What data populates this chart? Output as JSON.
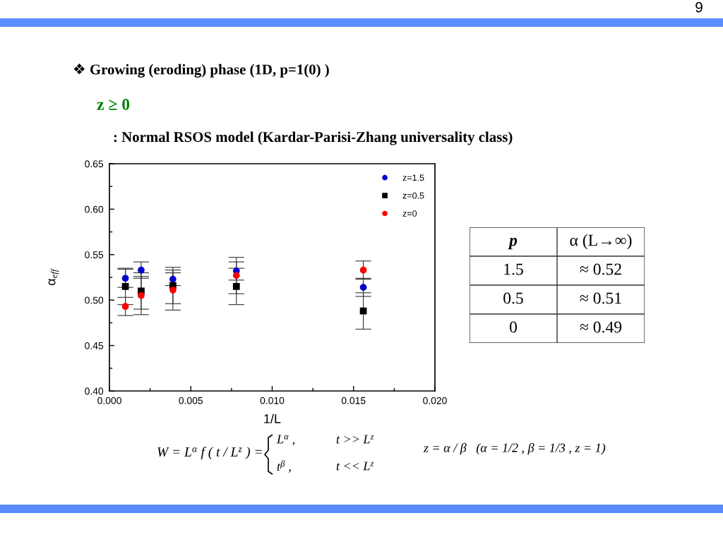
{
  "chart_data": [
    {
      "type": "scatter",
      "title": "❖ Growing (eroding) phase (1D, p=1(0) )",
      "subtitle": "z ≥ 0",
      "xlabel": "1/L",
      "ylabel": "α$_{eff}$",
      "x": [
        0.00098,
        0.00195,
        0.0039,
        0.0078,
        0.0156
      ],
      "series": [
        {
          "name": "z=1.5",
          "color": "#0000cc",
          "marker": "circle",
          "values": [
            0.524,
            0.533,
            0.523,
            0.532,
            0.514
          ],
          "errors": [
            0.01,
            0.009,
            0.007,
            0.01,
            0.01
          ]
        },
        {
          "name": "z=0.5",
          "color": "#000000",
          "marker": "square",
          "values": [
            0.515,
            0.51,
            0.516,
            0.515,
            0.488
          ],
          "errors": [
            0.02,
            0.02,
            0.02,
            0.02,
            0.02
          ]
        },
        {
          "name": "z=0",
          "color": "#ff0000",
          "marker": "circle",
          "values": [
            0.493,
            0.505,
            0.511,
            0.527,
            0.533
          ],
          "errors": [
            0.01,
            0.021,
            0.022,
            0.02,
            0.01
          ]
        }
      ],
      "xlim": [
        0,
        0.02
      ],
      "xticks": [
        {
          "value": 0,
          "label": "0.000"
        },
        {
          "value": 0.0025,
          "label": null
        },
        {
          "value": 0.005,
          "label": "0.005"
        },
        {
          "value": 0.0075,
          "label": null
        },
        {
          "value": 0.01,
          "label": "0.010"
        },
        {
          "value": 0.0125,
          "label": null
        },
        {
          "value": 0.015,
          "label": "0.015"
        },
        {
          "value": 0.0175,
          "label": null
        },
        {
          "value": 0.02,
          "label": "0.020"
        }
      ],
      "ylim": [
        0.4,
        0.65
      ],
      "yticks": [
        {
          "value": 0.4,
          "label": "0.40"
        },
        {
          "value": 0.425,
          "label": null
        },
        {
          "value": 0.45,
          "label": "0.45"
        },
        {
          "value": 0.475,
          "label": null
        },
        {
          "value": 0.5,
          "label": "0.50"
        },
        {
          "value": 0.525,
          "label": null
        },
        {
          "value": 0.55,
          "label": "0.55"
        },
        {
          "value": 0.575,
          "label": null
        },
        {
          "value": 0.6,
          "label": "0.60"
        },
        {
          "value": 0.625,
          "label": null
        },
        {
          "value": 0.65,
          "label": "0.65"
        }
      ],
      "legend": "top right",
      "annotations": [
        ": Normal RSOS model (Kardar-Parisi-Zhang universality class)",
        "W = L$^{α}$ f ( t / L$^{z}$ ) =",
        "L$^{α}$ ,",
        "t >> L$^{z}$",
        "t$^{β}$ ,",
        "t << L$^{z}$",
        "z = α / β   (α = 1/2 , β = 1/3 , z = 1)",
        "9"
      ]
    },
    {
      "type": "other",
      "annotations": [
        "p",
        "α (L→∞)",
        "1.5",
        "≈ 0.52",
        "0.5",
        "≈ 0.51",
        "0",
        "≈ 0.49"
      ]
    }
  ]
}
